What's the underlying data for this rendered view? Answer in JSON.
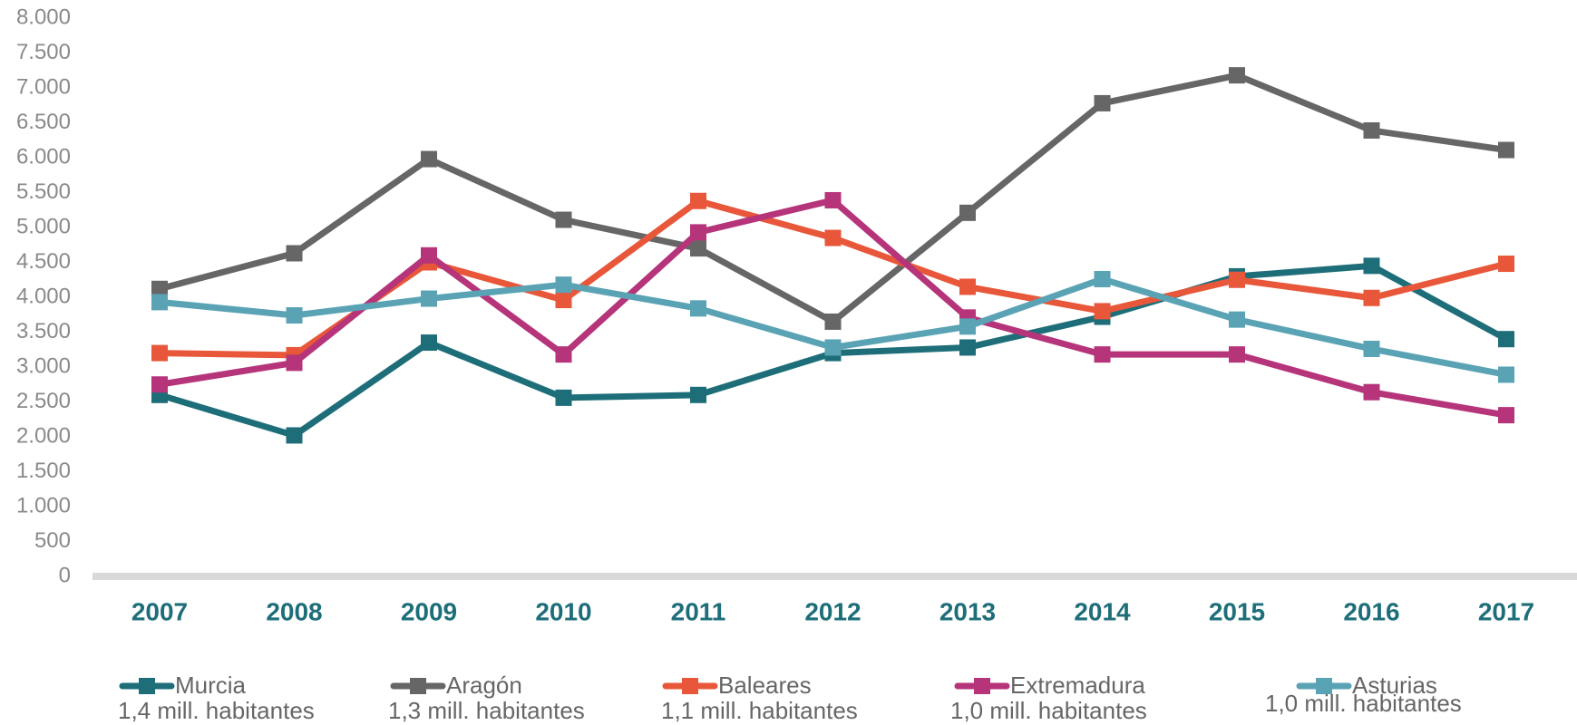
{
  "chart_data": {
    "type": "line",
    "categories": [
      "2007",
      "2008",
      "2009",
      "2010",
      "2011",
      "2012",
      "2013",
      "2014",
      "2015",
      "2016",
      "2017"
    ],
    "series": [
      {
        "name": "Murcia",
        "population": "1,4 mill. habitantes",
        "color": "#1e6e7a",
        "values": [
          2600,
          2020,
          3350,
          2560,
          2600,
          3200,
          3280,
          3720,
          4300,
          4450,
          3400
        ]
      },
      {
        "name": "Aragón",
        "population": "1,3 mill. habitantes",
        "color": "#666666",
        "values": [
          4120,
          4630,
          5980,
          5110,
          4700,
          3650,
          5210,
          6780,
          7180,
          6390,
          6110
        ]
      },
      {
        "name": "Baleares",
        "population": "1,1 mill. habitantes",
        "color": "#e8573a",
        "values": [
          3200,
          3170,
          4500,
          3960,
          5380,
          4850,
          4150,
          3800,
          4250,
          3990,
          4480
        ]
      },
      {
        "name": "Extremadura",
        "population": "1,0 mill. habitantes",
        "color": "#b5347a",
        "values": [
          2750,
          3060,
          4600,
          3180,
          4930,
          5390,
          3710,
          3180,
          3180,
          2640,
          2310
        ]
      },
      {
        "name": "Asturias",
        "population": "1,0 mill. habitantes",
        "color": "#5aa3b5",
        "values": [
          3930,
          3740,
          3980,
          4180,
          3840,
          3280,
          3580,
          4260,
          3680,
          3260,
          2890
        ]
      }
    ],
    "ylim": [
      0,
      8000
    ],
    "yticks": [
      0,
      500,
      {
        "value": 1000,
        "label": "1.000"
      },
      {
        "value": 1500,
        "label": "1.500"
      },
      {
        "value": 2000,
        "label": "2.000"
      },
      {
        "value": 2500,
        "label": "2.500"
      },
      {
        "value": 3000,
        "label": "3.000"
      },
      {
        "value": 3500,
        "label": "3.500"
      },
      {
        "value": 4000,
        "label": "4.000"
      },
      {
        "value": 4500,
        "label": "4.500"
      },
      {
        "value": 5000,
        "label": "5.000"
      },
      {
        "value": 5500,
        "label": "5.500"
      },
      {
        "value": 6000,
        "label": "6.000"
      },
      {
        "value": 6500,
        "label": "6.500"
      },
      {
        "value": 7000,
        "label": "7.000"
      },
      {
        "value": 7500,
        "label": "7.500"
      },
      {
        "value": 8000,
        "label": "8.000"
      }
    ],
    "grid": false,
    "legend": "bottom"
  }
}
